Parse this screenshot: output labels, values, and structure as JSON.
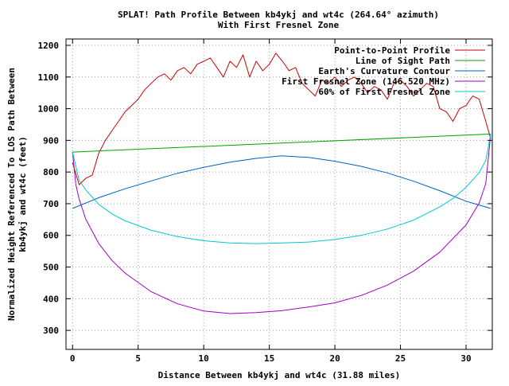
{
  "chart_data": {
    "type": "line",
    "title": "SPLAT! Path Profile Between kb4ykj and wt4c (264.64° azimuth)",
    "subtitle": "With First Fresnel Zone",
    "xlabel": "Distance Between kb4ykj and wt4c (31.88 miles)",
    "ylabel_line1": "Normalized Height Referenced To LOS Path Between",
    "ylabel_line2": "kb4ykj and wt4c (feet)",
    "xlim": [
      -0.5,
      32
    ],
    "ylim": [
      240,
      1220
    ],
    "xticks": [
      0,
      5,
      10,
      15,
      20,
      25,
      30
    ],
    "yticks": [
      300,
      400,
      500,
      600,
      700,
      800,
      900,
      1000,
      1100,
      1200
    ],
    "grid": true,
    "legend_position": "top-right",
    "series": [
      {
        "name": "Point-to-Point Profile",
        "color": "#cc0000",
        "x": [
          0,
          0.5,
          1,
          1.5,
          2,
          2.5,
          3,
          3.5,
          4,
          4.5,
          5,
          5.5,
          6,
          6.5,
          7,
          7.5,
          8,
          8.5,
          9,
          9.5,
          10,
          10.5,
          11,
          11.5,
          12,
          12.5,
          13,
          13.5,
          14,
          14.5,
          15,
          15.5,
          16,
          16.5,
          17,
          17.5,
          18,
          18.5,
          19,
          19.5,
          20,
          20.5,
          21,
          21.5,
          22,
          22.5,
          23,
          23.5,
          24,
          24.5,
          25,
          25.5,
          26,
          26.5,
          27,
          27.5,
          28,
          28.5,
          29,
          29.5,
          30,
          30.5,
          31,
          31.5,
          31.88
        ],
        "values": [
          830,
          760,
          780,
          790,
          860,
          900,
          930,
          960,
          990,
          1010,
          1030,
          1060,
          1080,
          1100,
          1110,
          1090,
          1120,
          1130,
          1110,
          1140,
          1150,
          1160,
          1130,
          1100,
          1150,
          1130,
          1170,
          1100,
          1150,
          1120,
          1140,
          1175,
          1150,
          1120,
          1130,
          1080,
          1060,
          1040,
          1090,
          1080,
          1100,
          1070,
          1090,
          1100,
          1080,
          1050,
          1070,
          1060,
          1030,
          1080,
          1090,
          1070,
          1040,
          1060,
          1080,
          1070,
          1000,
          990,
          960,
          1000,
          1010,
          1040,
          1030,
          960,
          905
        ]
      },
      {
        "name": "Line of Sight Path",
        "color": "#00a000",
        "x": [
          0,
          31.88
        ],
        "values": [
          863,
          920
        ]
      },
      {
        "name": "Earth's Curvature Contour",
        "color": "#0060c0",
        "x": [
          0,
          2,
          4,
          6,
          8,
          10,
          12,
          14,
          15.94,
          18,
          20,
          22,
          24,
          26,
          28,
          30,
          31.88
        ],
        "values": [
          685,
          719,
          747,
          772,
          796,
          815,
          831,
          843,
          851,
          846,
          834,
          818,
          797,
          771,
          741,
          708,
          685
        ]
      },
      {
        "name": "First Fresnel Zone (146.520 MHz)",
        "color": "#a000c0",
        "x": [
          0,
          0.25,
          0.5,
          1,
          2,
          3,
          4,
          6,
          8,
          10,
          12,
          14,
          15.94,
          18,
          20,
          22,
          24,
          26,
          28,
          30,
          31,
          31.5,
          31.88
        ],
        "values": [
          863,
          760,
          715,
          652,
          574,
          521,
          481,
          422,
          384,
          361,
          353,
          356,
          362,
          374,
          387,
          410,
          443,
          487,
          547,
          633,
          702,
          764,
          920
        ]
      },
      {
        "name": "60% of First Fresnel Zone",
        "color": "#00c8d0",
        "x": [
          0,
          0.5,
          1,
          2,
          3,
          4,
          6,
          8,
          10,
          12,
          14,
          15.94,
          18,
          20,
          22,
          24,
          26,
          28,
          29,
          30,
          31,
          31.5,
          31.88
        ],
        "values": [
          863,
          774,
          744,
          698,
          668,
          646,
          616,
          596,
          583,
          576,
          574,
          576,
          579,
          587,
          600,
          620,
          648,
          690,
          716,
          752,
          798,
          836,
          920
        ]
      }
    ]
  }
}
